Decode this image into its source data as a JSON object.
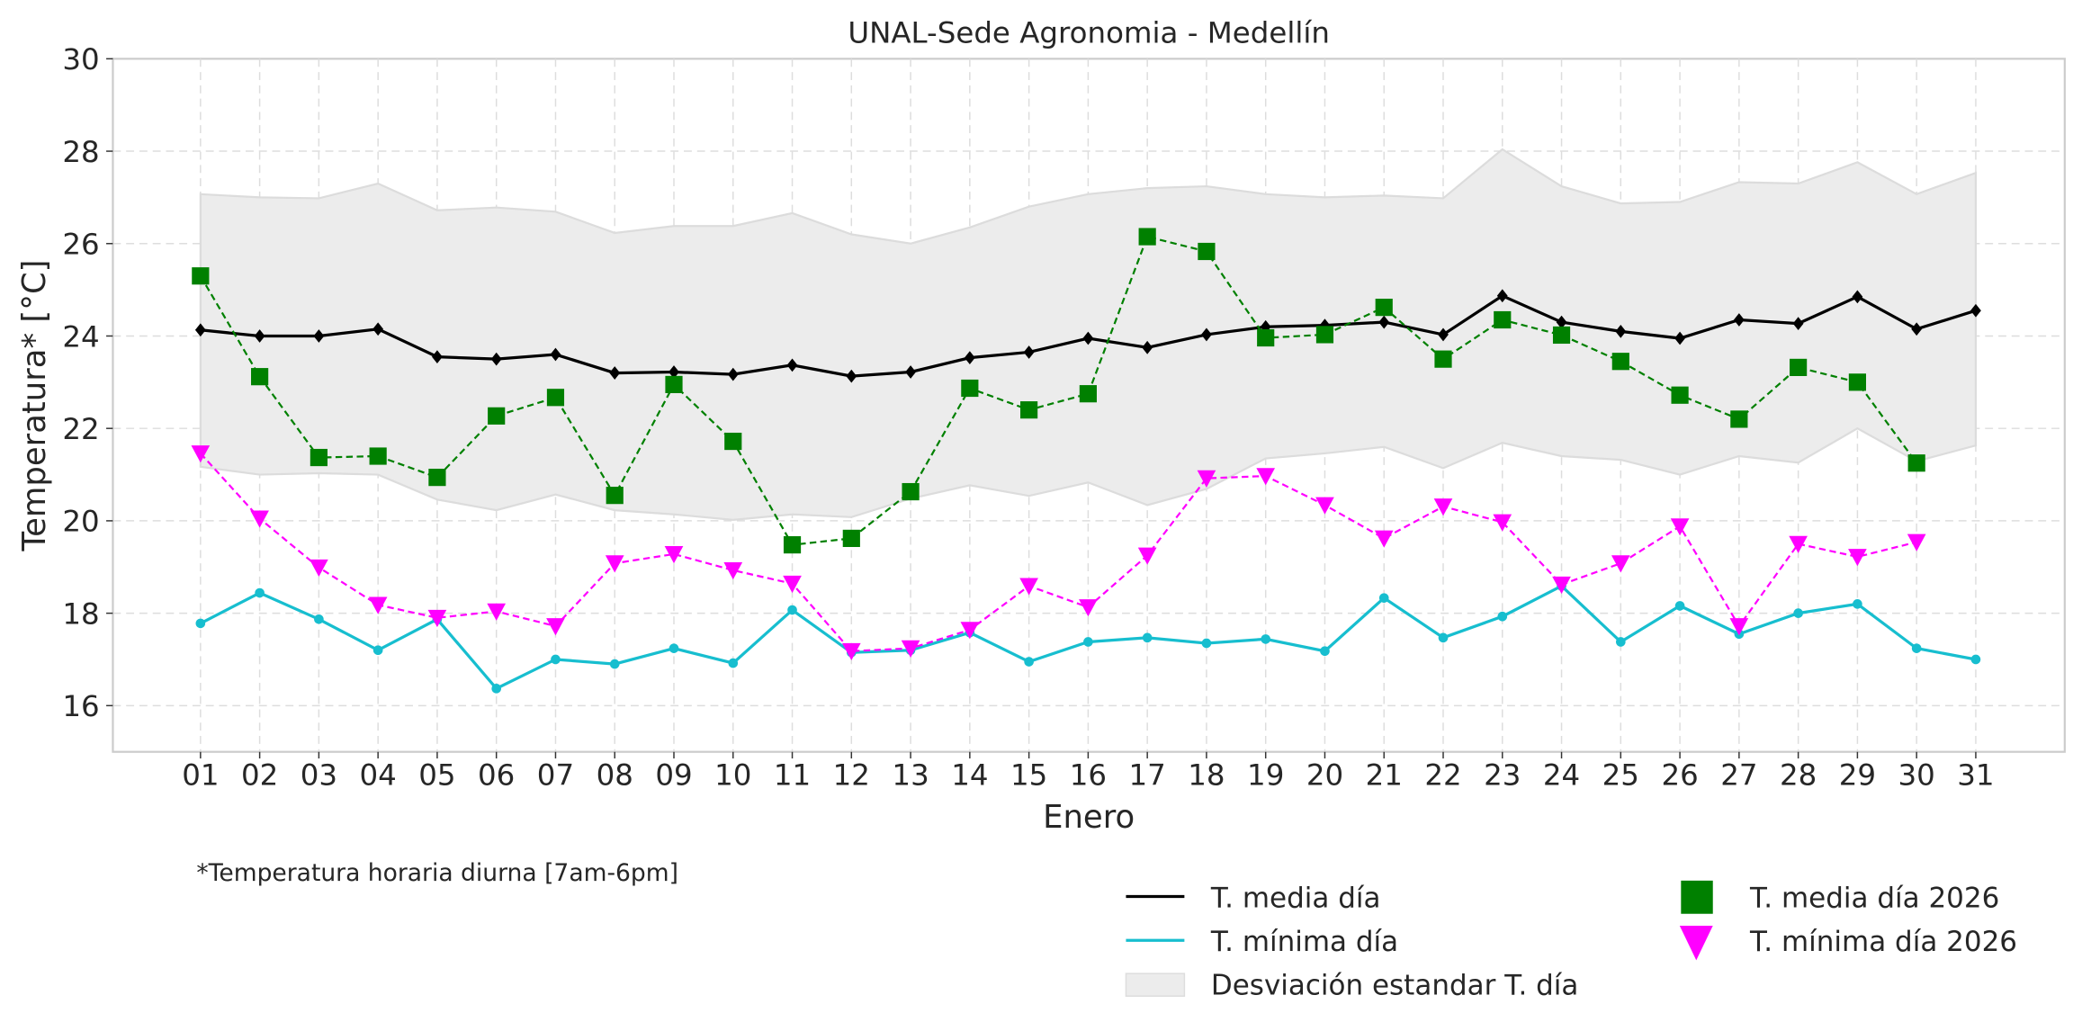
{
  "chart_data": {
    "type": "line",
    "title": "UNAL-Sede Agronomia - Medellín",
    "xlabel": "Enero",
    "ylabel": "Temperatura* [°C]",
    "ylim": [
      15,
      30
    ],
    "yticks": [
      "16",
      "18",
      "20",
      "22",
      "24",
      "26",
      "28",
      "30"
    ],
    "ytick_values": [
      16,
      18,
      20,
      22,
      24,
      26,
      28,
      30
    ],
    "grid": true,
    "footnote": "*Temperatura horaria diurna [7am-6pm]",
    "legend_position": "bottom-right",
    "categories": [
      "01",
      "02",
      "03",
      "04",
      "05",
      "06",
      "07",
      "08",
      "09",
      "10",
      "11",
      "12",
      "13",
      "14",
      "15",
      "16",
      "17",
      "18",
      "19",
      "20",
      "21",
      "22",
      "23",
      "24",
      "25",
      "26",
      "27",
      "28",
      "29",
      "30",
      "31"
    ],
    "band": {
      "name": "Desviación estandar T. día",
      "color": "#ececec",
      "upper": [
        27.07,
        27.0,
        26.98,
        27.3,
        26.72,
        26.78,
        26.69,
        26.23,
        26.38,
        26.38,
        26.66,
        26.2,
        26.0,
        26.35,
        26.8,
        27.07,
        27.2,
        27.24,
        27.07,
        27.0,
        27.04,
        26.98,
        28.04,
        27.24,
        26.87,
        26.9,
        27.33,
        27.3,
        27.76,
        27.07,
        27.53
      ],
      "lower": [
        21.17,
        21.0,
        21.03,
        21.0,
        20.46,
        20.23,
        20.57,
        20.23,
        20.14,
        20.02,
        20.14,
        20.08,
        20.48,
        20.77,
        20.54,
        20.83,
        20.34,
        20.69,
        21.35,
        21.46,
        21.6,
        21.14,
        21.69,
        21.4,
        21.32,
        21.0,
        21.4,
        21.26,
        22.0,
        21.29,
        21.63
      ]
    },
    "series": [
      {
        "name": "T. media día",
        "color": "#000000",
        "style": "solid",
        "marker": "diamond",
        "values": [
          24.13,
          24.0,
          24.0,
          24.15,
          23.55,
          23.5,
          23.6,
          23.2,
          23.22,
          23.17,
          23.37,
          23.13,
          23.22,
          23.53,
          23.65,
          23.95,
          23.75,
          24.03,
          24.2,
          24.23,
          24.3,
          24.03,
          24.87,
          24.3,
          24.1,
          23.95,
          24.35,
          24.27,
          24.85,
          24.15,
          24.55
        ]
      },
      {
        "name": "T. mínima día",
        "color": "#17becf",
        "style": "solid",
        "marker": "circle",
        "values": [
          17.78,
          18.44,
          17.87,
          17.2,
          17.87,
          16.37,
          17.0,
          16.9,
          17.24,
          16.92,
          18.07,
          17.15,
          17.2,
          17.58,
          16.95,
          17.38,
          17.47,
          17.35,
          17.44,
          17.18,
          18.33,
          17.47,
          17.93,
          18.59,
          17.38,
          18.16,
          17.55,
          18.0,
          18.2,
          17.24,
          17.0
        ]
      },
      {
        "name": "T. media día 2026",
        "color": "#008000",
        "style": "dashed",
        "marker": "square",
        "values": [
          25.3,
          23.12,
          21.37,
          21.4,
          20.94,
          22.27,
          22.67,
          20.55,
          22.95,
          21.72,
          19.48,
          19.62,
          20.63,
          22.87,
          22.4,
          22.75,
          26.15,
          25.83,
          23.96,
          24.03,
          24.62,
          23.5,
          24.35,
          24.02,
          23.45,
          22.72,
          22.2,
          23.32,
          23.0,
          21.25,
          null
        ]
      },
      {
        "name": "T. mínima día 2026",
        "color": "#ff00ff",
        "style": "dashed",
        "marker": "triangle-down",
        "values": [
          21.46,
          20.05,
          18.99,
          18.18,
          17.9,
          18.04,
          17.72,
          19.08,
          19.28,
          18.93,
          18.64,
          17.18,
          17.24,
          17.64,
          18.59,
          18.13,
          19.25,
          20.92,
          20.97,
          20.34,
          19.62,
          20.31,
          19.97,
          18.62,
          19.08,
          19.88,
          17.72,
          19.5,
          19.22,
          19.54,
          null
        ]
      }
    ]
  }
}
